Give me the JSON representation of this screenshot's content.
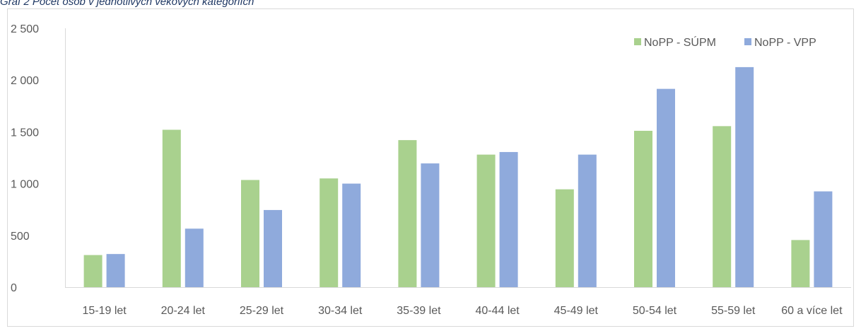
{
  "caption": "Graf 2 Počet osob v jednotlivých věkových kategoriích",
  "chart_data": {
    "type": "bar",
    "categories": [
      "15-19 let",
      "20-24 let",
      "25-29 let",
      "30-34 let",
      "35-39 let",
      "40-44 let",
      "45-49 let",
      "50-54 let",
      "55-59 let",
      "60 a více let"
    ],
    "series": [
      {
        "name": "NoPP - SÚPM",
        "color": "#a9d18e",
        "values": [
          310,
          1520,
          1035,
          1050,
          1420,
          1280,
          945,
          1510,
          1555,
          455
        ]
      },
      {
        "name": "NoPP - VPP",
        "color": "#8faadc",
        "values": [
          320,
          565,
          745,
          1000,
          1195,
          1305,
          1280,
          1915,
          2125,
          925
        ]
      }
    ],
    "yticks": [
      "0",
      "500",
      "1 000",
      "1 500",
      "2 000",
      "2 500"
    ],
    "ylim": [
      0,
      2500
    ],
    "grid": false,
    "legend_position": "top-right"
  }
}
